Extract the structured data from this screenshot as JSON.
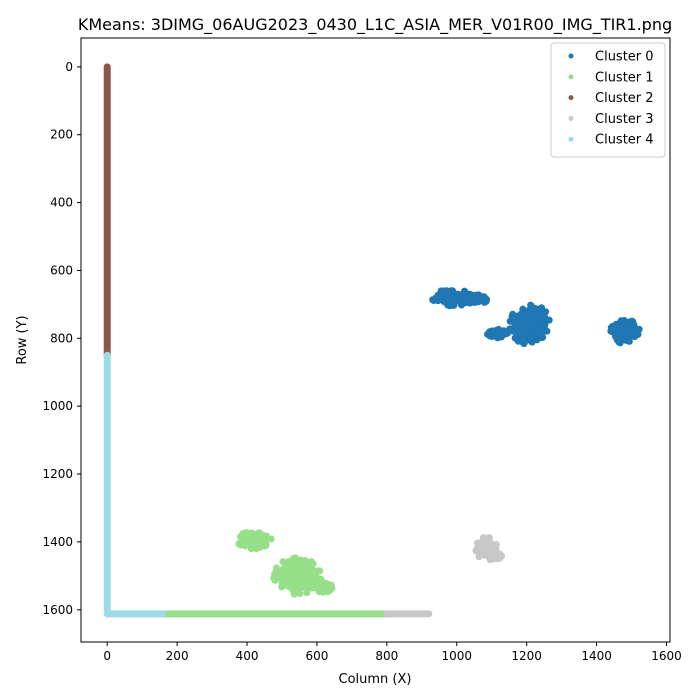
{
  "chart_data": {
    "type": "scatter",
    "title": "KMeans: 3DIMG_06AUG2023_0430_L1C_ASIA_MER_V01R00_IMG_TIR1.png",
    "xlabel": "Column (X)",
    "ylabel": "Row (Y)",
    "xlim": [
      -75,
      1610
    ],
    "ylim": [
      1695,
      -85
    ],
    "y_inverted": true,
    "xticks": [
      0,
      200,
      400,
      600,
      800,
      1000,
      1200,
      1400,
      1600
    ],
    "yticks": [
      0,
      200,
      400,
      600,
      800,
      1000,
      1200,
      1400,
      1600
    ],
    "grid": false,
    "legend_position": "top-right",
    "series": [
      {
        "name": "Cluster 0",
        "color": "#1f77b4",
        "blobs": [
          {
            "cx": 985,
            "cy": 680,
            "rx": 60,
            "ry": 25
          },
          {
            "cx": 1055,
            "cy": 685,
            "rx": 35,
            "ry": 14
          },
          {
            "cx": 1210,
            "cy": 760,
            "rx": 60,
            "ry": 60
          },
          {
            "cx": 1115,
            "cy": 785,
            "rx": 30,
            "ry": 14
          },
          {
            "cx": 1480,
            "cy": 780,
            "rx": 45,
            "ry": 35
          }
        ],
        "lines": []
      },
      {
        "name": "Cluster 1",
        "color": "#98df8a",
        "blobs": [
          {
            "cx": 420,
            "cy": 1395,
            "rx": 50,
            "ry": 26
          },
          {
            "cx": 545,
            "cy": 1500,
            "rx": 70,
            "ry": 55
          },
          {
            "cx": 620,
            "cy": 1535,
            "rx": 25,
            "ry": 15
          }
        ],
        "lines": [
          {
            "x1": 160,
            "y1": 1612,
            "x2": 800,
            "y2": 1612
          }
        ]
      },
      {
        "name": "Cluster 2",
        "color": "#8c564b",
        "blobs": [],
        "lines": [
          {
            "x1": 0,
            "y1": 0,
            "x2": 0,
            "y2": 850
          }
        ]
      },
      {
        "name": "Cluster 3",
        "color": "#c7c7c7",
        "blobs": [
          {
            "cx": 1085,
            "cy": 1420,
            "rx": 35,
            "ry": 35
          },
          {
            "cx": 1110,
            "cy": 1440,
            "rx": 20,
            "ry": 12
          }
        ],
        "lines": [
          {
            "x1": 800,
            "y1": 1612,
            "x2": 920,
            "y2": 1612
          }
        ]
      },
      {
        "name": "Cluster 4",
        "color": "#9edae5",
        "blobs": [],
        "lines": [
          {
            "x1": 0,
            "y1": 850,
            "x2": 0,
            "y2": 1612
          },
          {
            "x1": 0,
            "y1": 1612,
            "x2": 160,
            "y2": 1612
          }
        ]
      }
    ]
  }
}
